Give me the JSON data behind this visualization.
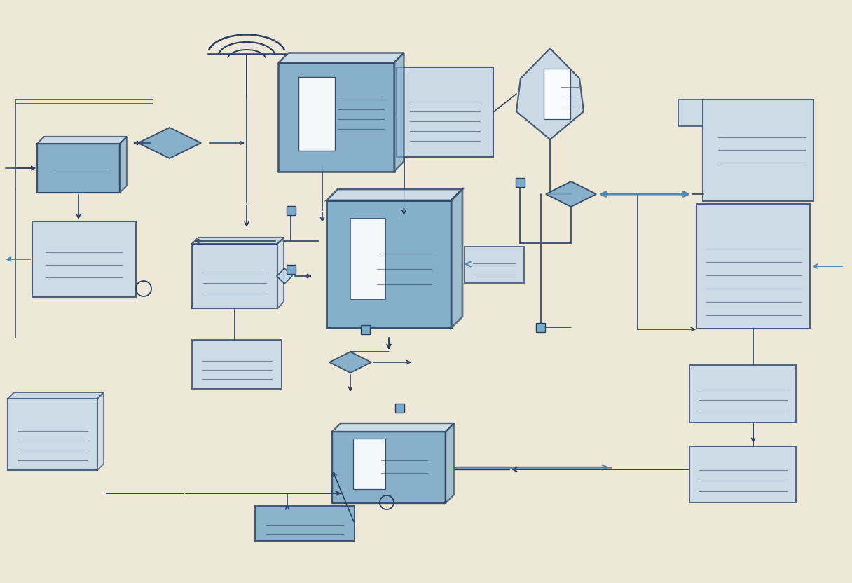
{
  "bg_color": "#ede8d8",
  "box_fill_light": "#c5d8ea",
  "box_fill_medium": "#7aaac8",
  "box_fill_dark": "#4a7a9b",
  "box_stroke": "#2a4060",
  "arrow_color": "#2a4060",
  "arrow_color_blue": "#4a8ab8",
  "line_color": "#2a4060",
  "figsize": [
    12.16,
    8.32
  ],
  "dpi": 100
}
